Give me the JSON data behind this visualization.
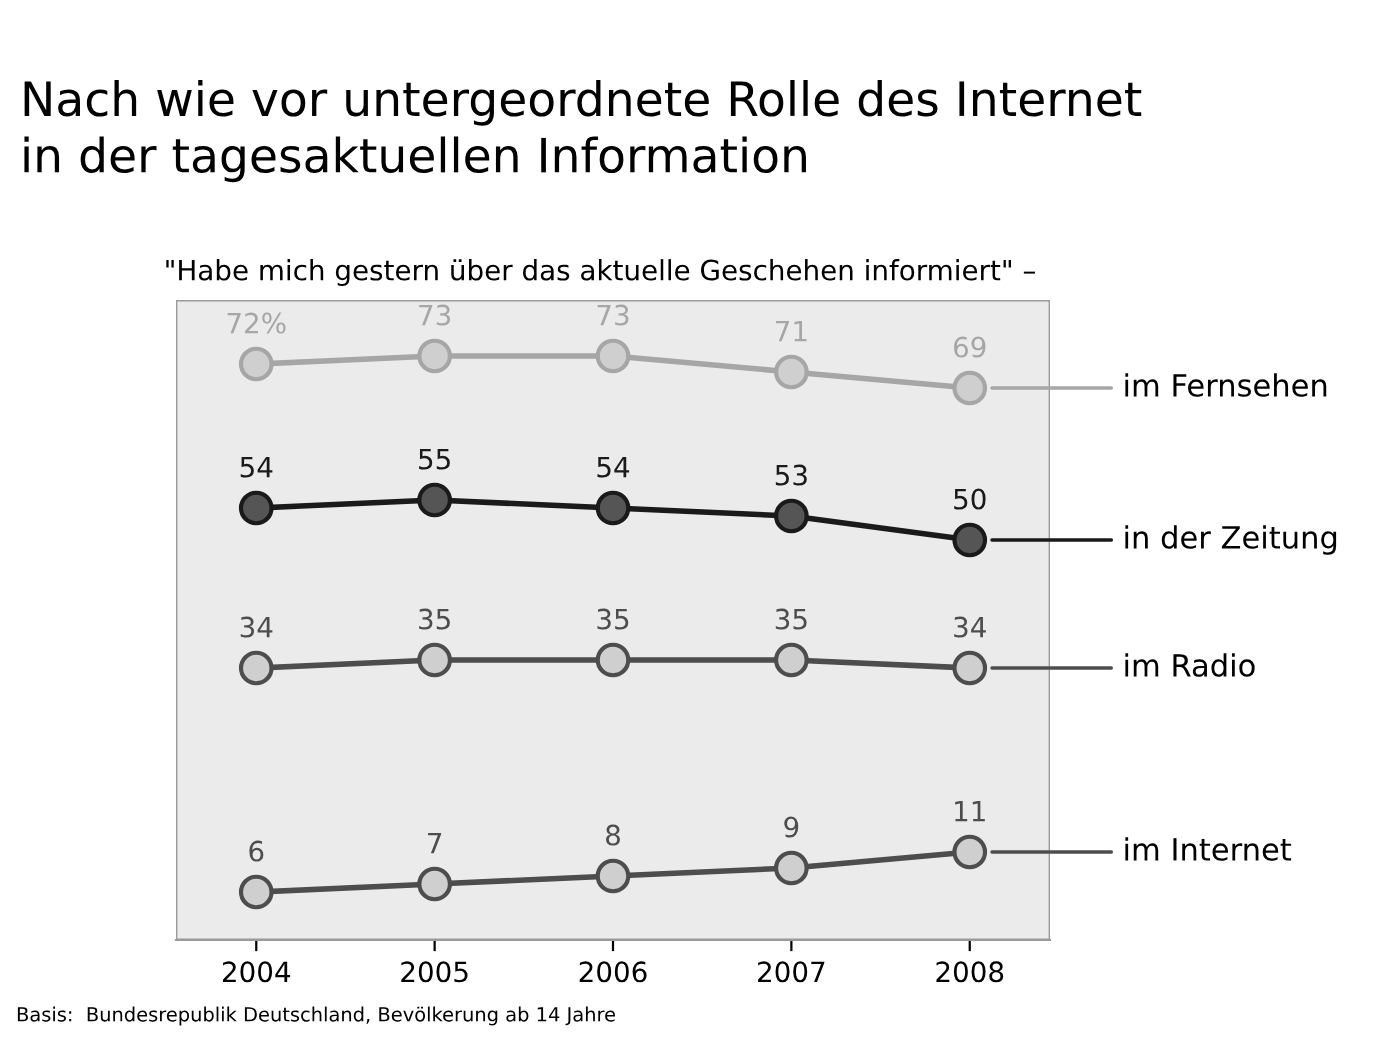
{
  "chart_data": {
    "type": "line",
    "title": "Nach wie vor untergeordnete Rolle des Internet\nin der tagesaktuellen Information",
    "subtitle": "\"Habe mich gestern über das aktuelle Geschehen informiert\" –",
    "categories": [
      "2004",
      "2005",
      "2006",
      "2007",
      "2008"
    ],
    "series": [
      {
        "name": "im Fernsehen",
        "color": "#a6a6a6",
        "values": [
          72,
          73,
          73,
          71,
          69
        ],
        "value_labels": [
          "72%",
          "73",
          "73",
          "71",
          "69"
        ]
      },
      {
        "name": "in der Zeitung",
        "color": "#1a1a1a",
        "values": [
          54,
          55,
          54,
          53,
          50
        ]
      },
      {
        "name": "im Radio",
        "color": "#4d4d4d",
        "values": [
          34,
          35,
          35,
          35,
          34
        ]
      },
      {
        "name": "im Internet",
        "color": "#4d4d4d",
        "values": [
          6,
          7,
          8,
          9,
          11
        ]
      }
    ],
    "data_labels": true,
    "marker": "circle",
    "grid": false,
    "legend": "right",
    "annotations": [
      "Basis:  Bundesrepublik Deutschland, Bevölkerung ab 14 Jahre"
    ]
  }
}
